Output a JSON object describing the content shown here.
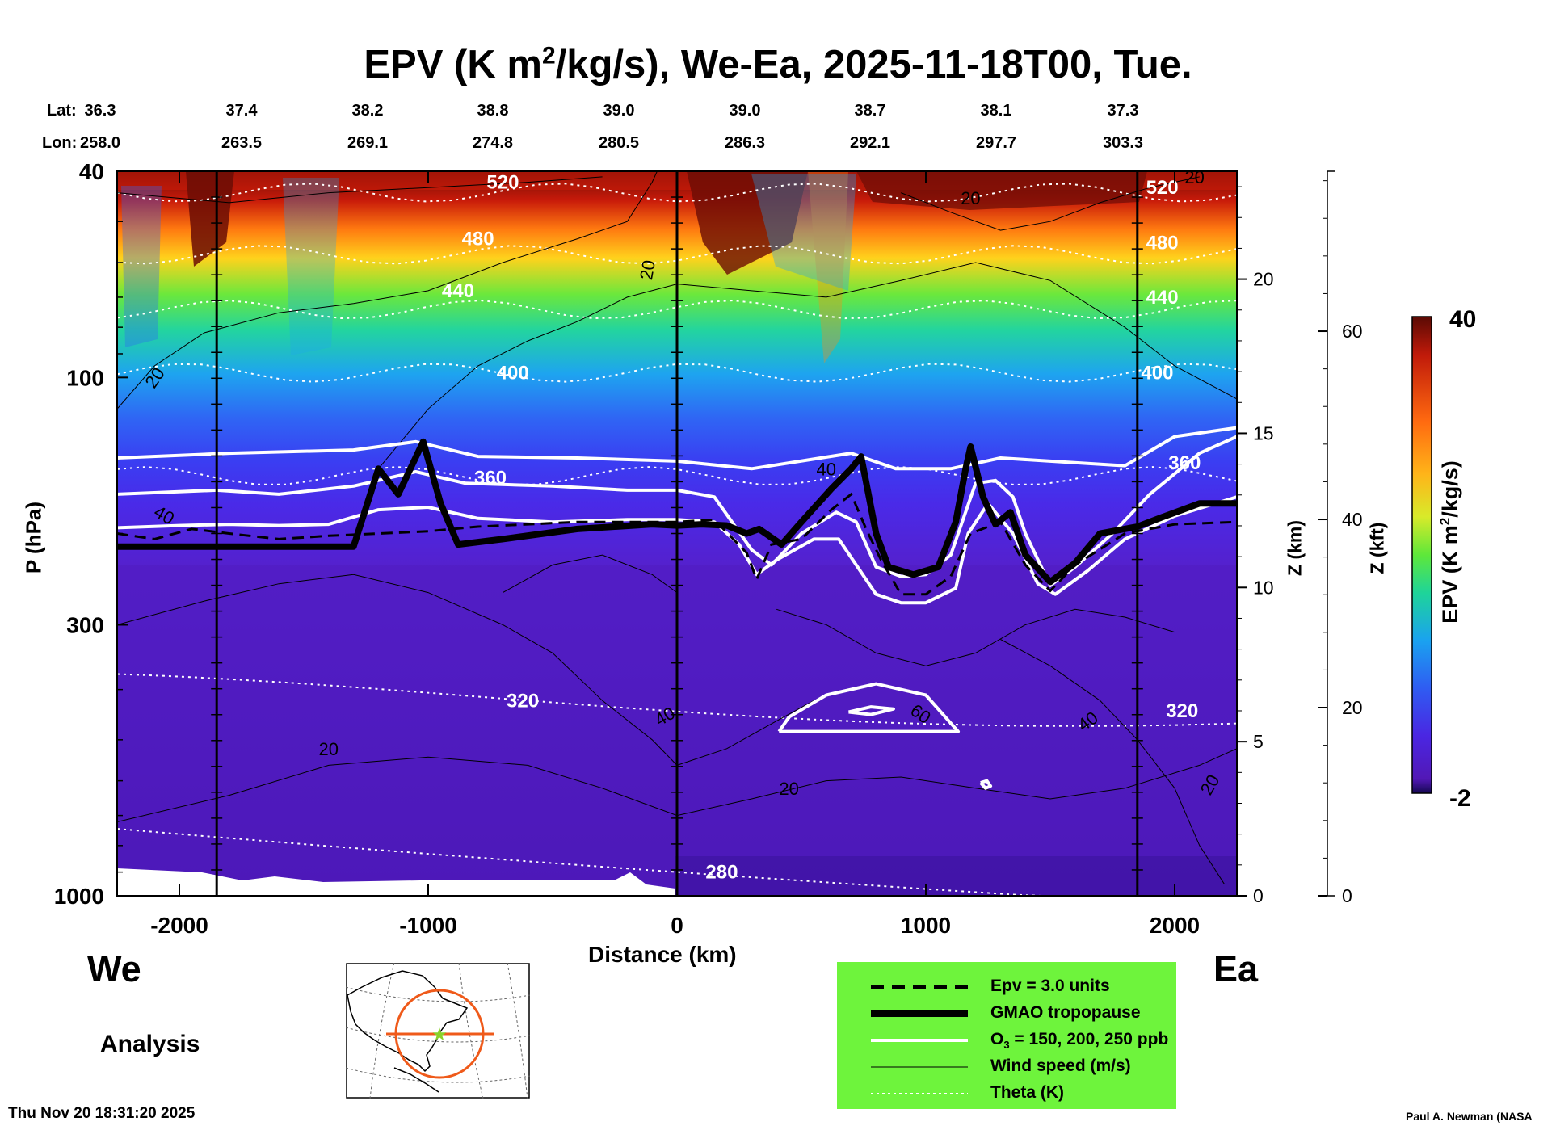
{
  "chart_data": {
    "type": "heatmap",
    "title_prefix": "EPV (K m",
    "title_sup": "2",
    "title_suffix": "/kg/s), We-Ea, 2025-11-18T00, Tue.",
    "lat_label": "Lat:",
    "lon_label": "Lon:",
    "lat": [
      "36.3",
      "37.4",
      "38.2",
      "38.8",
      "39.0",
      "39.0",
      "38.7",
      "38.1",
      "37.3"
    ],
    "lon": [
      "258.0",
      "263.5",
      "269.1",
      "274.8",
      "280.5",
      "286.3",
      "292.1",
      "297.7",
      "303.3"
    ],
    "xlabel": "Distance (km)",
    "xlim": [
      -2250,
      2250
    ],
    "xticks": [
      -2000,
      -1000,
      0,
      1000,
      2000
    ],
    "xtick_labels": [
      "-2000",
      "-1000",
      "0",
      "1000",
      "2000"
    ],
    "ylabel": "P (hPa)",
    "ylim": [
      40,
      1000
    ],
    "yticks": [
      40,
      100,
      300,
      1000
    ],
    "ytick_labels": [
      "40",
      "100",
      "300",
      "1000"
    ],
    "z_km_label": "Z (km)",
    "z_km_ticks": [
      0,
      5,
      10,
      15,
      20
    ],
    "z_kft_label": "Z (kft)",
    "z_kft_ticks": [
      0,
      20,
      40,
      60
    ],
    "vertical_markers_km": [
      -1850,
      0,
      1850
    ],
    "left_label": "We",
    "right_label": "Ea",
    "analysis_label": "Analysis",
    "colorbar": {
      "label_prefix": "EPV (K m",
      "label_sup": "2",
      "label_suffix": "/kg/s)",
      "min": -2,
      "max": 40,
      "min_label": "-2",
      "max_label": "40"
    },
    "legend": {
      "items": [
        {
          "name": "epv-line",
          "label": "Epv = 3.0 units"
        },
        {
          "name": "tropopause-line",
          "label": "GMAO tropopause"
        },
        {
          "name": "ozone-line",
          "label_prefix": "O",
          "label_sub": "3",
          "label_suffix": " = 150, 200, 250 ppb"
        },
        {
          "name": "wind-line",
          "label": "Wind speed (m/s)"
        },
        {
          "name": "theta-line",
          "label": "Theta (K)"
        }
      ],
      "background": "#6ef43c"
    },
    "theta_contours": [
      {
        "level": "520",
        "p": 44
      },
      {
        "level": "480",
        "p": 58
      },
      {
        "level": "440",
        "p": 74
      },
      {
        "level": "400",
        "p": 98
      },
      {
        "level": "360",
        "p": 155
      },
      {
        "level": "320",
        "p": 420
      },
      {
        "level": "280",
        "p": 900
      }
    ],
    "theta_labels": [
      {
        "text": "520",
        "x": -700,
        "p": 42
      },
      {
        "text": "480",
        "x": -800,
        "p": 54
      },
      {
        "text": "440",
        "x": -880,
        "p": 68
      },
      {
        "text": "400",
        "x": -660,
        "p": 98
      },
      {
        "text": "360",
        "x": -750,
        "p": 156
      },
      {
        "text": "320",
        "x": -620,
        "p": 420
      },
      {
        "text": "280",
        "x": 180,
        "p": 900
      },
      {
        "text": "520",
        "x": 1950,
        "p": 43
      },
      {
        "text": "480",
        "x": 1950,
        "p": 55
      },
      {
        "text": "440",
        "x": 1950,
        "p": 70
      },
      {
        "text": "400",
        "x": 1930,
        "p": 98
      },
      {
        "text": "360",
        "x": 2040,
        "p": 146
      },
      {
        "text": "320",
        "x": 2030,
        "p": 440
      }
    ],
    "wind_labels": [
      {
        "text": "20",
        "x": -2100,
        "p": 100,
        "rot": -55
      },
      {
        "text": "40",
        "x": -2060,
        "p": 184,
        "rot": 30
      },
      {
        "text": "20",
        "x": -1400,
        "p": 520,
        "rot": 0
      },
      {
        "text": "40",
        "x": -50,
        "p": 450,
        "rot": -30
      },
      {
        "text": "20",
        "x": -120,
        "p": 62,
        "rot": -80
      },
      {
        "text": "20",
        "x": 1180,
        "p": 45,
        "rot": 0
      },
      {
        "text": "40",
        "x": 600,
        "p": 150,
        "rot": 0
      },
      {
        "text": "60",
        "x": 980,
        "p": 445,
        "rot": 35
      },
      {
        "text": "40",
        "x": 1650,
        "p": 460,
        "rot": -35
      },
      {
        "text": "20",
        "x": 450,
        "p": 620,
        "rot": 0
      },
      {
        "text": "20",
        "x": 2140,
        "p": 610,
        "rot": -60
      },
      {
        "text": "20",
        "x": 2080,
        "p": 41,
        "rot": 0
      }
    ],
    "tropopause": [
      [
        -2250,
        212
      ],
      [
        -1300,
        212
      ],
      [
        -1200,
        150
      ],
      [
        -1120,
        168
      ],
      [
        -1020,
        133
      ],
      [
        -950,
        175
      ],
      [
        -880,
        210
      ],
      [
        -700,
        205
      ],
      [
        -400,
        196
      ],
      [
        -100,
        192
      ],
      [
        0,
        193
      ],
      [
        100,
        192
      ],
      [
        200,
        193
      ],
      [
        280,
        200
      ],
      [
        330,
        196
      ],
      [
        420,
        210
      ],
      [
        500,
        190
      ],
      [
        620,
        164
      ],
      [
        700,
        150
      ],
      [
        740,
        142
      ],
      [
        800,
        200
      ],
      [
        850,
        232
      ],
      [
        950,
        240
      ],
      [
        1050,
        232
      ],
      [
        1120,
        190
      ],
      [
        1160,
        150
      ],
      [
        1180,
        136
      ],
      [
        1230,
        170
      ],
      [
        1280,
        192
      ],
      [
        1340,
        182
      ],
      [
        1400,
        220
      ],
      [
        1500,
        248
      ],
      [
        1600,
        228
      ],
      [
        1700,
        200
      ],
      [
        1850,
        194
      ],
      [
        1950,
        186
      ],
      [
        2100,
        175
      ],
      [
        2200,
        175
      ],
      [
        2250,
        175
      ]
    ],
    "epv_dashed": [
      [
        -2250,
        200
      ],
      [
        -2100,
        205
      ],
      [
        -1950,
        196
      ],
      [
        -1800,
        200
      ],
      [
        -1600,
        205
      ],
      [
        -1400,
        202
      ],
      [
        -1200,
        200
      ],
      [
        -1000,
        198
      ],
      [
        -800,
        194
      ],
      [
        -600,
        192
      ],
      [
        -400,
        190
      ],
      [
        -200,
        190
      ],
      [
        0,
        190
      ],
      [
        150,
        188
      ],
      [
        280,
        218
      ],
      [
        320,
        245
      ],
      [
        380,
        210
      ],
      [
        500,
        205
      ],
      [
        620,
        180
      ],
      [
        700,
        168
      ],
      [
        760,
        196
      ],
      [
        820,
        225
      ],
      [
        900,
        262
      ],
      [
        1000,
        262
      ],
      [
        1100,
        242
      ],
      [
        1180,
        200
      ],
      [
        1300,
        190
      ],
      [
        1400,
        230
      ],
      [
        1500,
        258
      ],
      [
        1600,
        230
      ],
      [
        1800,
        200
      ],
      [
        2000,
        192
      ],
      [
        2250,
        190
      ]
    ],
    "ozone_lines": [
      [
        [
          -2250,
          143
        ],
        [
          -1800,
          140
        ],
        [
          -1300,
          138
        ],
        [
          -1050,
          133
        ],
        [
          -800,
          142
        ],
        [
          -400,
          143
        ],
        [
          0,
          145
        ],
        [
          300,
          150
        ],
        [
          700,
          140
        ],
        [
          880,
          150
        ],
        [
          950,
          150
        ],
        [
          1100,
          150
        ],
        [
          1300,
          143
        ],
        [
          1500,
          145
        ],
        [
          1800,
          148
        ],
        [
          2000,
          130
        ],
        [
          2250,
          125
        ]
      ],
      [
        [
          -2250,
          168
        ],
        [
          -1850,
          165
        ],
        [
          -1600,
          168
        ],
        [
          -1300,
          162
        ],
        [
          -1050,
          152
        ],
        [
          -850,
          160
        ],
        [
          -500,
          162
        ],
        [
          -200,
          165
        ],
        [
          0,
          165
        ],
        [
          150,
          170
        ],
        [
          300,
          215
        ],
        [
          380,
          230
        ],
        [
          500,
          200
        ],
        [
          640,
          182
        ],
        [
          720,
          190
        ],
        [
          800,
          232
        ],
        [
          900,
          242
        ],
        [
          1000,
          240
        ],
        [
          1100,
          220
        ],
        [
          1200,
          160
        ],
        [
          1280,
          158
        ],
        [
          1350,
          170
        ],
        [
          1400,
          200
        ],
        [
          1500,
          252
        ],
        [
          1600,
          232
        ],
        [
          1750,
          200
        ],
        [
          1900,
          168
        ],
        [
          2100,
          140
        ],
        [
          2250,
          130
        ]
      ],
      [
        [
          -2250,
          195
        ],
        [
          -2000,
          193
        ],
        [
          -1800,
          192
        ],
        [
          -1600,
          193
        ],
        [
          -1400,
          192
        ],
        [
          -1200,
          180
        ],
        [
          -1000,
          178
        ],
        [
          -800,
          187
        ],
        [
          -500,
          190
        ],
        [
          -200,
          188
        ],
        [
          0,
          188
        ],
        [
          150,
          190
        ],
        [
          250,
          210
        ],
        [
          320,
          240
        ],
        [
          400,
          225
        ],
        [
          550,
          205
        ],
        [
          650,
          205
        ],
        [
          720,
          230
        ],
        [
          800,
          262
        ],
        [
          900,
          272
        ],
        [
          1000,
          272
        ],
        [
          1120,
          255
        ],
        [
          1170,
          200
        ],
        [
          1250,
          175
        ],
        [
          1350,
          200
        ],
        [
          1450,
          250
        ],
        [
          1520,
          262
        ],
        [
          1650,
          236
        ],
        [
          1800,
          205
        ],
        [
          2000,
          185
        ],
        [
          2250,
          170
        ]
      ],
      [
        [
          410,
          482
        ],
        [
          450,
          452
        ],
        [
          600,
          410
        ],
        [
          800,
          390
        ],
        [
          1000,
          410
        ],
        [
          1130,
          482
        ],
        [
          410,
          482
        ]
      ],
      [
        [
          690,
          442
        ],
        [
          780,
          432
        ],
        [
          870,
          436
        ],
        [
          780,
          447
        ],
        [
          690,
          442
        ]
      ],
      [
        [
          1220,
          605
        ],
        [
          1245,
          600
        ],
        [
          1260,
          614
        ],
        [
          1240,
          620
        ],
        [
          1220,
          605
        ]
      ]
    ],
    "wind_lines": [
      [
        [
          -2250,
          115
        ],
        [
          -2100,
          95
        ],
        [
          -1900,
          82
        ],
        [
          -1600,
          75
        ],
        [
          -1300,
          72
        ],
        [
          -1000,
          68
        ],
        [
          -700,
          60
        ],
        [
          -400,
          54
        ],
        [
          -200,
          50
        ],
        [
          -100,
          42
        ],
        [
          -80,
          40
        ]
      ],
      [
        [
          -1200,
          150
        ],
        [
          -1000,
          115
        ],
        [
          -800,
          95
        ],
        [
          -600,
          85
        ],
        [
          -400,
          78
        ],
        [
          -200,
          70
        ],
        [
          0,
          66
        ],
        [
          300,
          68
        ],
        [
          600,
          70
        ],
        [
          900,
          65
        ],
        [
          1200,
          60
        ],
        [
          1500,
          65
        ],
        [
          1800,
          80
        ],
        [
          2000,
          95
        ],
        [
          2250,
          110
        ]
      ],
      [
        [
          -2250,
          300
        ],
        [
          -1900,
          270
        ],
        [
          -1600,
          250
        ],
        [
          -1300,
          240
        ],
        [
          -1000,
          260
        ],
        [
          -700,
          300
        ],
        [
          -500,
          340
        ],
        [
          -300,
          420
        ],
        [
          -100,
          500
        ],
        [
          0,
          560
        ],
        [
          200,
          520
        ],
        [
          400,
          460
        ],
        [
          550,
          420
        ]
      ],
      [
        [
          -2250,
          720
        ],
        [
          -1800,
          640
        ],
        [
          -1400,
          560
        ],
        [
          -1000,
          540
        ],
        [
          -600,
          560
        ],
        [
          -300,
          620
        ],
        [
          0,
          700
        ],
        [
          300,
          650
        ],
        [
          600,
          600
        ],
        [
          900,
          590
        ],
        [
          1200,
          620
        ],
        [
          1500,
          650
        ],
        [
          1800,
          620
        ],
        [
          2100,
          560
        ],
        [
          2250,
          520
        ]
      ],
      [
        [
          1300,
          320
        ],
        [
          1500,
          360
        ],
        [
          1700,
          420
        ],
        [
          1850,
          500
        ],
        [
          2000,
          620
        ],
        [
          2100,
          800
        ],
        [
          2200,
          950
        ]
      ],
      [
        [
          -2250,
          44
        ],
        [
          -1800,
          46
        ],
        [
          -1400,
          44
        ],
        [
          -1000,
          43
        ],
        [
          -600,
          42
        ],
        [
          -300,
          41
        ]
      ],
      [
        [
          900,
          44
        ],
        [
          1100,
          48
        ],
        [
          1300,
          52
        ],
        [
          1500,
          50
        ],
        [
          1700,
          46
        ],
        [
          1900,
          43
        ],
        [
          2100,
          41
        ]
      ],
      [
        [
          -700,
          260
        ],
        [
          -500,
          230
        ],
        [
          -300,
          220
        ],
        [
          -100,
          240
        ],
        [
          0,
          260
        ]
      ],
      [
        [
          400,
          280
        ],
        [
          600,
          300
        ],
        [
          800,
          340
        ],
        [
          1000,
          360
        ],
        [
          1200,
          340
        ],
        [
          1400,
          300
        ],
        [
          1600,
          280
        ],
        [
          1800,
          290
        ],
        [
          2000,
          310
        ]
      ]
    ],
    "timestamp": "Thu Nov 20 18:31:20 2025",
    "credit": "Paul A. Newman (NASA"
  }
}
